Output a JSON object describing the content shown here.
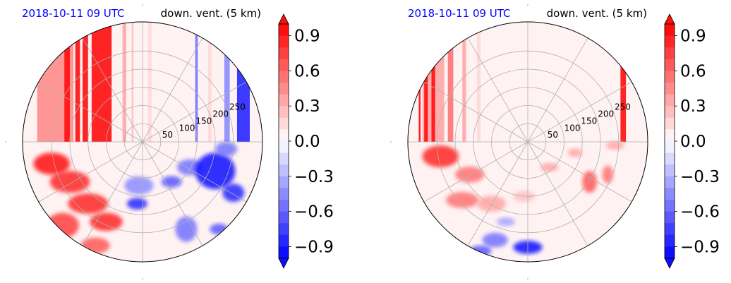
{
  "chart_data": [
    {
      "type": "heatmap",
      "projection": "polar",
      "title_left": "2018-10-11 09 UTC",
      "title_right": "down. vent. (5 km)",
      "title_left_color": "#0000ff",
      "radial_ticks": [
        50,
        100,
        150,
        200,
        250
      ],
      "rmax": 330,
      "grid": true,
      "colorbar": {
        "ticks": [
          "0.9",
          "0.6",
          "0.3",
          "0.0",
          "−0.3",
          "−0.6",
          "−0.9"
        ],
        "vmin": -1.0,
        "vmax": 1.0,
        "levels": 20,
        "extend": "both",
        "cmap": "bwr"
      },
      "regions": [
        {
          "kind": "stripe",
          "x0": -290,
          "x1": -190,
          "v": 0.45
        },
        {
          "kind": "stripe",
          "x0": -215,
          "x1": -200,
          "v": 1.0
        },
        {
          "kind": "stripe",
          "x0": -185,
          "x1": -172,
          "v": 1.0
        },
        {
          "kind": "stripe",
          "x0": -165,
          "x1": -150,
          "v": 1.0
        },
        {
          "kind": "stripe",
          "x0": -140,
          "x1": -85,
          "v": 1.0
        },
        {
          "kind": "stripe",
          "x0": -55,
          "x1": -45,
          "v": 0.35
        },
        {
          "kind": "stripe",
          "x0": -30,
          "x1": -25,
          "v": 0.25
        },
        {
          "kind": "stripe",
          "x0": 15,
          "x1": 25,
          "v": 0.2
        },
        {
          "kind": "stripe",
          "x0": 145,
          "x1": 152,
          "v": -0.55
        },
        {
          "kind": "stripe",
          "x0": 180,
          "x1": 190,
          "v": 0.2
        },
        {
          "kind": "stripe",
          "x0": 225,
          "x1": 240,
          "v": -0.5
        },
        {
          "kind": "stripe",
          "x0": 260,
          "x1": 295,
          "v": -0.85
        },
        {
          "kind": "blob",
          "x": -250,
          "y": -60,
          "rx": 50,
          "ry": 30,
          "v": 1.0
        },
        {
          "kind": "blob",
          "x": -200,
          "y": -110,
          "rx": 55,
          "ry": 30,
          "v": 0.9
        },
        {
          "kind": "blob",
          "x": -150,
          "y": -170,
          "rx": 55,
          "ry": 28,
          "v": 0.85
        },
        {
          "kind": "blob",
          "x": -100,
          "y": -220,
          "rx": 45,
          "ry": 25,
          "v": 0.8
        },
        {
          "kind": "blob",
          "x": -220,
          "y": -230,
          "rx": 45,
          "ry": 35,
          "v": 0.7
        },
        {
          "kind": "blob",
          "x": -130,
          "y": -285,
          "rx": 40,
          "ry": 22,
          "v": 0.6
        },
        {
          "kind": "blob",
          "x": -10,
          "y": -120,
          "rx": 40,
          "ry": 25,
          "v": -0.45
        },
        {
          "kind": "blob",
          "x": -15,
          "y": -170,
          "rx": 28,
          "ry": 16,
          "v": -0.85
        },
        {
          "kind": "blob",
          "x": 80,
          "y": -110,
          "rx": 28,
          "ry": 16,
          "v": -0.7
        },
        {
          "kind": "blob",
          "x": 130,
          "y": -70,
          "rx": 35,
          "ry": 22,
          "v": -0.55
        },
        {
          "kind": "blob",
          "x": 200,
          "y": -80,
          "rx": 55,
          "ry": 50,
          "v": -0.9
        },
        {
          "kind": "blob",
          "x": 250,
          "y": -140,
          "rx": 30,
          "ry": 25,
          "v": -0.8
        },
        {
          "kind": "blob",
          "x": 120,
          "y": -240,
          "rx": 30,
          "ry": 35,
          "v": -0.6
        },
        {
          "kind": "blob",
          "x": 210,
          "y": -240,
          "rx": 25,
          "ry": 15,
          "v": -0.7
        },
        {
          "kind": "blob",
          "x": 230,
          "y": -20,
          "rx": 30,
          "ry": 20,
          "v": -0.6
        }
      ]
    },
    {
      "type": "heatmap",
      "projection": "polar",
      "title_left": "2018-10-11 09 UTC",
      "title_right": "down. vent. (5 km)",
      "title_left_color": "#0000ff",
      "radial_ticks": [
        50,
        100,
        150,
        200,
        250
      ],
      "rmax": 330,
      "grid": true,
      "colorbar": {
        "ticks": [
          "0.9",
          "0.6",
          "0.3",
          "0.0",
          "−0.3",
          "−0.6",
          "−0.9"
        ],
        "vmin": -1.0,
        "vmax": 1.0,
        "levels": 20,
        "extend": "both",
        "cmap": "bwr"
      },
      "regions": [
        {
          "kind": "stripe",
          "x0": -290,
          "x1": -230,
          "v": 0.35
        },
        {
          "kind": "stripe",
          "x0": -300,
          "x1": -295,
          "v": 1.0
        },
        {
          "kind": "stripe",
          "x0": -285,
          "x1": -275,
          "v": 1.0
        },
        {
          "kind": "stripe",
          "x0": -265,
          "x1": -255,
          "v": 1.0
        },
        {
          "kind": "stripe",
          "x0": -220,
          "x1": -205,
          "v": 0.5
        },
        {
          "kind": "stripe",
          "x0": -180,
          "x1": -170,
          "v": 0.3
        },
        {
          "kind": "stripe",
          "x0": -140,
          "x1": -130,
          "v": 0.2
        },
        {
          "kind": "stripe",
          "x0": 255,
          "x1": 270,
          "v": 1.0
        },
        {
          "kind": "blob",
          "x": -240,
          "y": -40,
          "rx": 50,
          "ry": 30,
          "v": 0.8
        },
        {
          "kind": "blob",
          "x": -160,
          "y": -90,
          "rx": 40,
          "ry": 22,
          "v": 0.55
        },
        {
          "kind": "blob",
          "x": -180,
          "y": -160,
          "rx": 45,
          "ry": 22,
          "v": 0.5
        },
        {
          "kind": "blob",
          "x": -100,
          "y": -170,
          "rx": 40,
          "ry": 22,
          "v": 0.4
        },
        {
          "kind": "blob",
          "x": -90,
          "y": -270,
          "rx": 35,
          "ry": 20,
          "v": -0.6
        },
        {
          "kind": "blob",
          "x": 0,
          "y": -290,
          "rx": 40,
          "ry": 18,
          "v": -0.9
        },
        {
          "kind": "blob",
          "x": -130,
          "y": -300,
          "rx": 30,
          "ry": 15,
          "v": -0.7
        },
        {
          "kind": "blob",
          "x": 170,
          "y": -110,
          "rx": 20,
          "ry": 30,
          "v": 0.6
        },
        {
          "kind": "blob",
          "x": 220,
          "y": -90,
          "rx": 15,
          "ry": 25,
          "v": 0.5
        },
        {
          "kind": "blob",
          "x": 130,
          "y": -30,
          "rx": 20,
          "ry": 12,
          "v": 0.35
        },
        {
          "kind": "blob",
          "x": 60,
          "y": -70,
          "rx": 25,
          "ry": 12,
          "v": 0.3
        },
        {
          "kind": "blob",
          "x": -10,
          "y": -150,
          "rx": 30,
          "ry": 15,
          "v": 0.25
        },
        {
          "kind": "blob",
          "x": -60,
          "y": -220,
          "rx": 25,
          "ry": 12,
          "v": -0.35
        },
        {
          "kind": "blob",
          "x": 240,
          "y": -10,
          "rx": 25,
          "ry": 12,
          "v": 0.35
        }
      ]
    }
  ]
}
